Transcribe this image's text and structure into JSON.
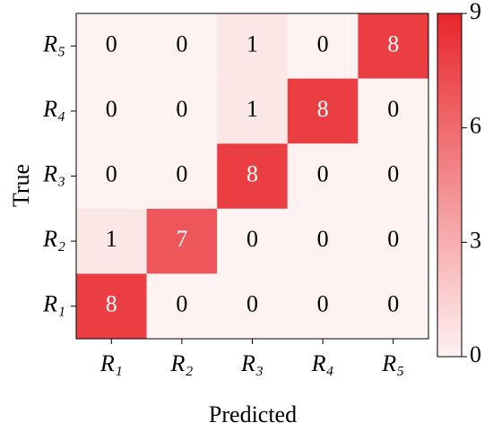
{
  "chart_data": {
    "type": "heatmap",
    "x_label": "Predicted",
    "y_label": "True",
    "x_categories": [
      "R₁",
      "R₂",
      "R₃",
      "R₄",
      "R₅"
    ],
    "y_categories": [
      "R₁",
      "R₂",
      "R₃",
      "R₄",
      "R₅"
    ],
    "values": [
      [
        8,
        0,
        0,
        0,
        0
      ],
      [
        1,
        7,
        0,
        0,
        0
      ],
      [
        0,
        0,
        8,
        0,
        0
      ],
      [
        0,
        0,
        1,
        8,
        0
      ],
      [
        0,
        0,
        1,
        0,
        8
      ]
    ],
    "colormap": [
      "#ffffff",
      "#e8262b"
    ],
    "clim": [
      0,
      9
    ],
    "cticks": [
      0,
      3,
      6,
      9
    ]
  }
}
